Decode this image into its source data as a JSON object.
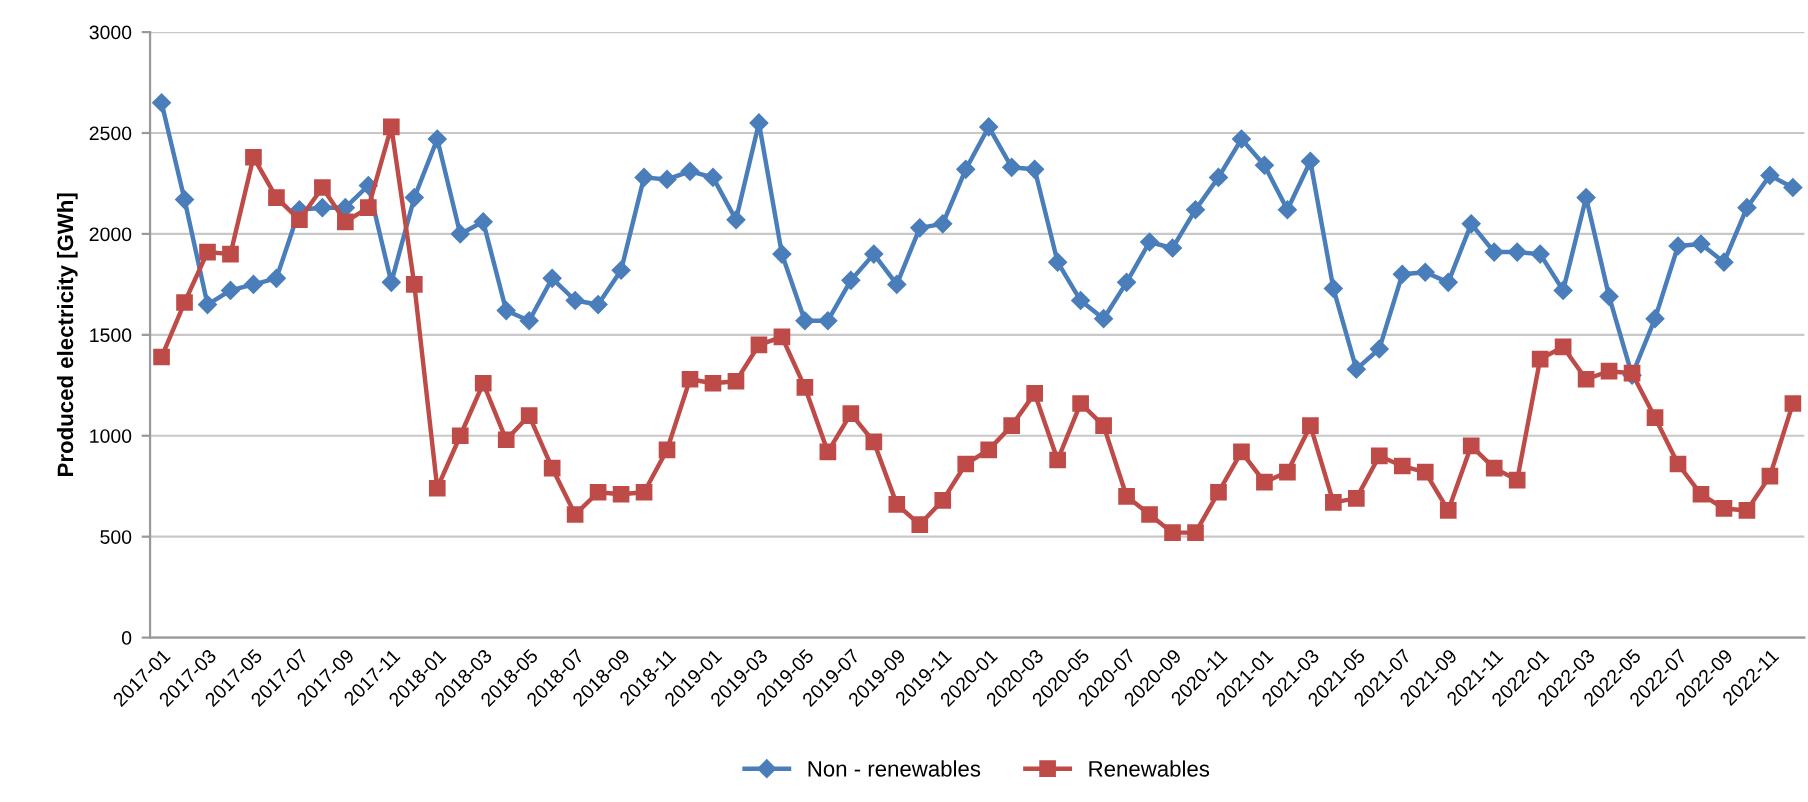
{
  "chart_data": {
    "type": "line",
    "ylabel": "Produced electricity [GWh]",
    "categories": [
      "2017-01",
      null,
      "2017-03",
      null,
      "2017-05",
      null,
      "2017-07",
      null,
      "2017-09",
      null,
      "2017-11",
      null,
      "2018-01",
      null,
      "2018-03",
      null,
      "2018-05",
      null,
      "2018-07",
      null,
      "2018-09",
      null,
      "2018-11",
      null,
      "2019-01",
      null,
      "2019-03",
      null,
      "2019-05",
      null,
      "2019-07",
      null,
      "2019-09",
      null,
      "2019-11",
      null,
      "2020-01",
      null,
      "2020-03",
      null,
      "2020-05",
      null,
      "2020-07",
      null,
      "2020-09",
      null,
      "2020-11",
      null,
      "2021-01",
      null,
      "2021-03",
      null,
      "2021-05",
      null,
      "2021-07",
      null,
      "2021-09",
      null,
      "2021-11",
      null,
      "2022-01",
      null,
      "2022-03",
      null,
      "2022-05",
      null,
      "2022-07",
      null,
      "2022-09",
      null,
      "2022-11",
      null
    ],
    "series": [
      {
        "name": "Non - renewables",
        "color": "#4a7ebb",
        "marker": "diamond",
        "values": [
          2650,
          2170,
          1650,
          1720,
          1750,
          1780,
          2120,
          2130,
          2130,
          2240,
          1760,
          2180,
          2470,
          2000,
          2060,
          1620,
          1570,
          1780,
          1670,
          1650,
          1820,
          2280,
          2270,
          2310,
          2280,
          2070,
          2550,
          1900,
          1570,
          1570,
          1770,
          1900,
          1750,
          2030,
          2050,
          2320,
          2530,
          2330,
          2320,
          1860,
          1670,
          1580,
          1760,
          1960,
          1930,
          2120,
          2280,
          2470,
          2340,
          2120,
          2360,
          1730,
          1330,
          1430,
          1800,
          1810,
          1760,
          2050,
          1910,
          1910,
          1900,
          1720,
          2180,
          1690,
          1300,
          1580,
          1940,
          1950,
          1860,
          2130,
          2290,
          2230
        ]
      },
      {
        "name": "Renewables",
        "color": "#be4b48",
        "marker": "square",
        "values": [
          1390,
          1660,
          1910,
          1900,
          2380,
          2180,
          2070,
          2230,
          2060,
          2130,
          2530,
          1750,
          740,
          1000,
          1260,
          980,
          1100,
          840,
          610,
          720,
          710,
          720,
          930,
          1280,
          1260,
          1270,
          1450,
          1490,
          1240,
          920,
          1110,
          970,
          660,
          560,
          680,
          860,
          930,
          1050,
          1210,
          880,
          1160,
          1050,
          700,
          610,
          520,
          520,
          720,
          920,
          770,
          820,
          1050,
          670,
          690,
          900,
          850,
          820,
          630,
          950,
          840,
          780,
          1380,
          1440,
          1280,
          1320,
          1310,
          1090,
          860,
          710,
          640,
          630,
          800,
          1160
        ]
      }
    ],
    "ylim": [
      0,
      3000
    ],
    "yticks": [
      0,
      500,
      1000,
      1500,
      2000,
      2500,
      3000
    ],
    "grid": "y",
    "legend": "bottom",
    "line_style": "solid"
  }
}
